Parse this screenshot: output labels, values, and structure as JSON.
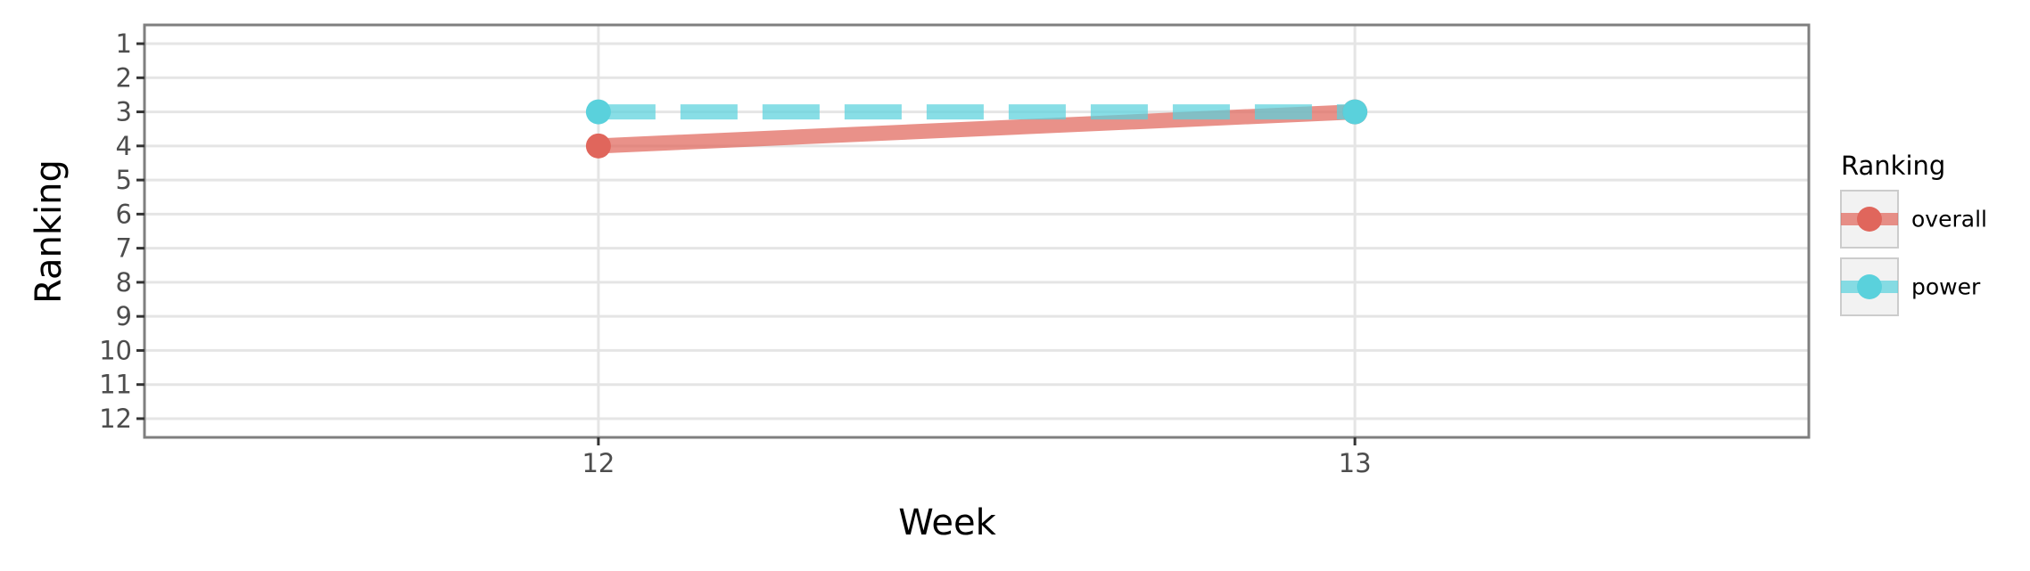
{
  "chart_data": {
    "type": "line",
    "title": "",
    "xlabel": "Week",
    "ylabel": "Ranking",
    "x": [
      12,
      13
    ],
    "x_tick_labels": [
      "12",
      "13"
    ],
    "y_tick_labels": [
      "1",
      "2",
      "3",
      "4",
      "5",
      "6",
      "7",
      "8",
      "9",
      "10",
      "11",
      "12"
    ],
    "y_ticks": [
      1,
      2,
      3,
      4,
      5,
      6,
      7,
      8,
      9,
      10,
      11,
      12
    ],
    "xlim": [
      11.4,
      13.6
    ],
    "ylim": [
      12.55,
      0.45
    ],
    "y_reversed": true,
    "grid": true,
    "legend": {
      "title": "Ranking",
      "position": "right"
    },
    "series": [
      {
        "name": "overall",
        "values": [
          4,
          3
        ],
        "color": "#e0665c",
        "line_style": "solid"
      },
      {
        "name": "power",
        "values": [
          3,
          3
        ],
        "color": "#5ad1dc",
        "line_style": "dashed"
      }
    ]
  }
}
